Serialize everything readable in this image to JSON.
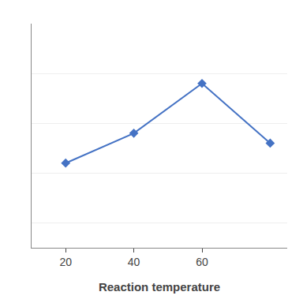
{
  "chart_data": {
    "type": "line",
    "x_label": "Reaction temperature",
    "x": [
      20,
      40,
      60,
      80
    ],
    "values": [
      72,
      78,
      88,
      76
    ],
    "color": "#4472C4",
    "marker": "diamond",
    "line_style": "solid",
    "xlim": [
      10,
      85
    ],
    "xticks": [
      20,
      40,
      60
    ],
    "ylim": [
      55,
      100
    ],
    "yticks": [
      60,
      70,
      80,
      90,
      100
    ],
    "grid": "y",
    "tick_labels": "x"
  }
}
